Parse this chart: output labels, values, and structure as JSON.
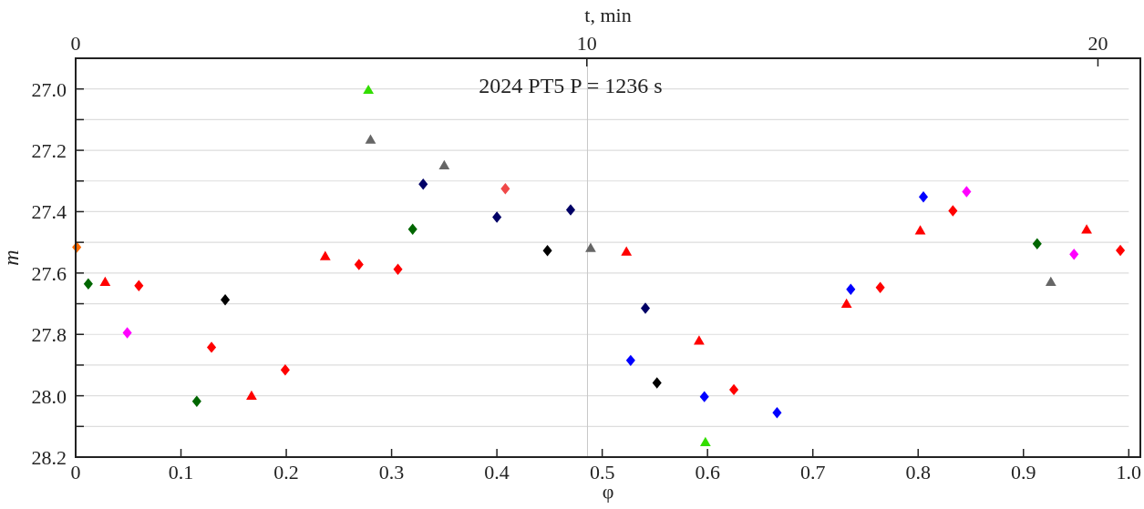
{
  "chart_data": {
    "type": "scatter",
    "xlabel": "φ",
    "ylabel": "m",
    "x2label": "t, min",
    "annotations": [
      "2024 PT5  P = 1236 s"
    ],
    "xlim": [
      0,
      1.011
    ],
    "xticks": [
      0,
      0.1,
      0.2,
      0.3,
      0.4,
      0.5,
      0.6,
      0.7,
      0.8,
      0.9,
      {
        "value": 1.0,
        "label": "1.0"
      }
    ],
    "x2lim": [
      0,
      20.83
    ],
    "x2ticks": [
      0,
      10,
      20
    ],
    "ylim": [
      28.2,
      26.9
    ],
    "yticks": [
      {
        "value": 27.0,
        "label": "27.0"
      },
      {
        "value": 27.1,
        "label": null
      },
      {
        "value": 27.2,
        "label": "27.2"
      },
      {
        "value": 27.3,
        "label": null
      },
      {
        "value": 27.4,
        "label": "27.4"
      },
      {
        "value": 27.5,
        "label": null
      },
      {
        "value": 27.6,
        "label": "27.6"
      },
      {
        "value": 27.7,
        "label": null
      },
      {
        "value": 27.8,
        "label": "27.8"
      },
      {
        "value": 27.9,
        "label": null
      },
      {
        "value": 28.0,
        "label": "28.0"
      },
      {
        "value": 28.1,
        "label": null
      },
      {
        "value": 28.2,
        "label": "28.2"
      }
    ],
    "grid": "y",
    "ref_lines": [
      {
        "axis": "x",
        "value": 0.486,
        "color": "#c8c8c8"
      }
    ],
    "series": [
      {
        "color": "#ff6a00",
        "marker": "diamond",
        "x": [
          0.001
        ],
        "values": [
          27.516
        ]
      },
      {
        "color": "#ff0000",
        "marker": "diamond",
        "x": [
          0.06,
          0.129,
          0.199,
          0.269,
          0.306,
          0.625,
          0.764,
          0.833,
          0.992
        ],
        "values": [
          27.641,
          27.842,
          27.916,
          27.572,
          27.588,
          27.98,
          27.647,
          27.397,
          27.526
        ]
      },
      {
        "color": "#f04848",
        "marker": "diamond",
        "x": [
          0.408
        ],
        "values": [
          27.325
        ]
      },
      {
        "color": "#ff0000",
        "marker": "triangle",
        "x": [
          0.028,
          0.167,
          0.237,
          0.523,
          0.592,
          0.732,
          0.802,
          0.96
        ],
        "values": [
          27.632,
          28.003,
          27.548,
          27.533,
          27.823,
          27.703,
          27.464,
          27.461
        ]
      },
      {
        "color": "#006600",
        "marker": "diamond",
        "x": [
          0.012,
          0.115,
          0.32,
          0.913
        ],
        "values": [
          27.635,
          28.018,
          27.457,
          27.505
        ]
      },
      {
        "color": "#ff00ff",
        "marker": "diamond",
        "x": [
          0.049,
          0.846,
          0.948
        ],
        "values": [
          27.795,
          27.335,
          27.539
        ]
      },
      {
        "color": "#000000",
        "marker": "diamond",
        "x": [
          0.142,
          0.448,
          0.552
        ],
        "values": [
          27.687,
          27.527,
          27.958
        ]
      },
      {
        "color": "#000066",
        "marker": "diamond",
        "x": [
          0.33,
          0.4,
          0.47,
          0.541
        ],
        "values": [
          27.31,
          27.418,
          27.394,
          27.715
        ]
      },
      {
        "color": "#0000ff",
        "marker": "diamond",
        "x": [
          0.527,
          0.597,
          0.666,
          0.736,
          0.805
        ],
        "values": [
          27.885,
          28.003,
          28.055,
          27.653,
          27.352
        ]
      },
      {
        "color": "#666666",
        "marker": "triangle",
        "x": [
          0.28,
          0.35,
          0.489,
          0.926
        ],
        "values": [
          27.168,
          27.252,
          27.521,
          27.632
        ]
      },
      {
        "color": "#33dd00",
        "marker": "triangle",
        "x": [
          0.278,
          0.598
        ],
        "values": [
          27.006,
          28.154
        ]
      }
    ]
  }
}
